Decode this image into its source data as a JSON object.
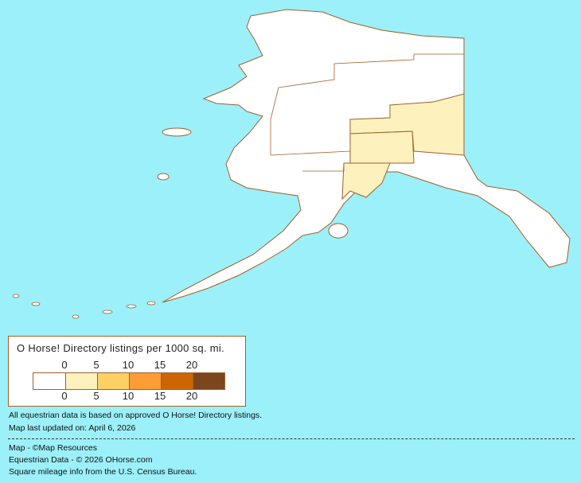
{
  "legend": {
    "title": "O Horse! Directory listings per 1000 sq. mi.",
    "top_ticks": [
      "0",
      "5",
      "10",
      "15",
      "20"
    ],
    "bottom_ticks": [
      "0",
      "5",
      "10",
      "15",
      "20"
    ],
    "colors": [
      "#ffffff",
      "#fdf2bd",
      "#fdd066",
      "#fd9d36",
      "#cc6605",
      "#7b461e"
    ]
  },
  "map_colors": {
    "background": "#9cf0fa",
    "land": "#ffffff",
    "border": "#a0602a",
    "tier1": "#fdf2bd"
  },
  "notes": {
    "data_basis": "All equestrian data is based on approved O Horse! Directory listings.",
    "updated": "Map last updated on: April 6, 2026",
    "credit_map": "Map - ©Map Resources",
    "credit_data": "Equestrian Data - © 2026 OHorse.com",
    "credit_census": "Square mileage info from the U.S. Census Bureau."
  }
}
